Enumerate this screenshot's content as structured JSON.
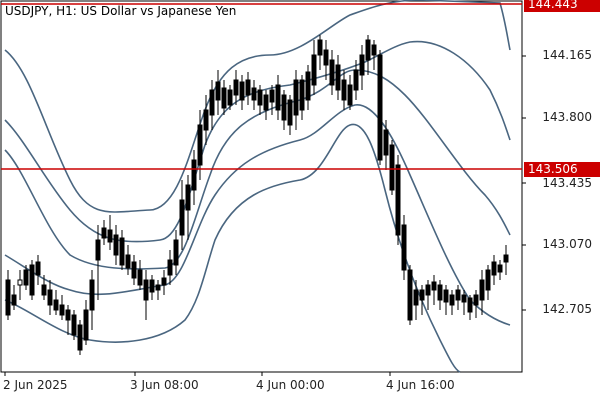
{
  "chart": {
    "title": "USDJPY, H1:  US Dollar vs Japanese Yen",
    "price_axis": [
      "144.165",
      "143.800",
      "143.435",
      "143.070",
      "142.705"
    ],
    "time_axis": [
      "2 Jun 2025",
      "3 Jun 08:00",
      "4 Jun 00:00",
      "4 Jun 16:00"
    ],
    "horizontal_lines": [
      {
        "price": "144.443",
        "color": "#cc0000"
      },
      {
        "price": "143.506",
        "color": "#cc0000"
      }
    ],
    "colors": {
      "candle": "#000000",
      "bands": "#4a6680",
      "tag": "#cc0000",
      "grid": "#000000"
    }
  },
  "chart_data": {
    "type": "line",
    "symbol": "USDJPY",
    "timeframe": "H1",
    "ylim": [
      142.35,
      144.52
    ],
    "x": [
      "2 Jun 2025",
      "3 Jun 08:00",
      "4 Jun 00:00",
      "4 Jun 16:00"
    ],
    "y_ticks": [
      144.165,
      143.8,
      143.435,
      143.07,
      142.705
    ],
    "levels": [
      144.443,
      143.506
    ]
  }
}
